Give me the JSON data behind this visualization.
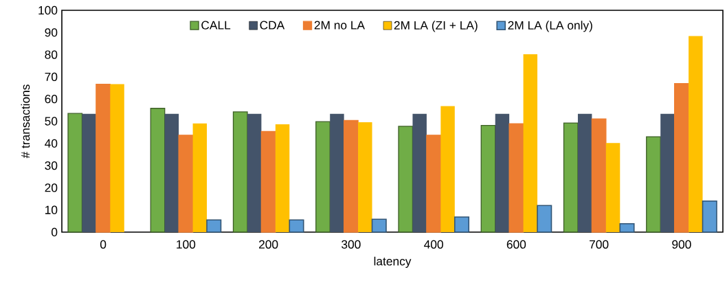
{
  "chart_data": {
    "type": "bar",
    "xlabel": "latency",
    "ylabel": "# transactions",
    "categories": [
      "0",
      "100",
      "200",
      "300",
      "400",
      "600",
      "700",
      "900"
    ],
    "series": [
      {
        "name": "CALL",
        "color": "#70ad47",
        "values": [
          53.5,
          55.8,
          54.2,
          49.8,
          47.7,
          48.1,
          49.2,
          43
        ]
      },
      {
        "name": "CDA",
        "color": "#44546a",
        "values": [
          53.3,
          53.3,
          53.3,
          53.3,
          53.3,
          53.3,
          53.3,
          53.3
        ]
      },
      {
        "name": "2M no LA",
        "color": "#ed7d31",
        "values": [
          66.7,
          43.7,
          45.4,
          50.3,
          43.7,
          48.9,
          51,
          67
        ]
      },
      {
        "name": "2M LA (ZI + LA)",
        "color": "#ffc000",
        "values": [
          66.7,
          49,
          48.6,
          49.5,
          56.8,
          80.2,
          40.2,
          88.4
        ]
      },
      {
        "name": "2M LA (LA only)",
        "color": "#5b9bd5",
        "values": [
          null,
          5.5,
          5.5,
          5.8,
          6.8,
          12,
          3.8,
          14
        ]
      }
    ],
    "ylim": [
      0,
      100
    ],
    "yticks": [
      0,
      10,
      20,
      30,
      40,
      50,
      60,
      70,
      80,
      90,
      100
    ],
    "grid": false,
    "legend": "top"
  }
}
